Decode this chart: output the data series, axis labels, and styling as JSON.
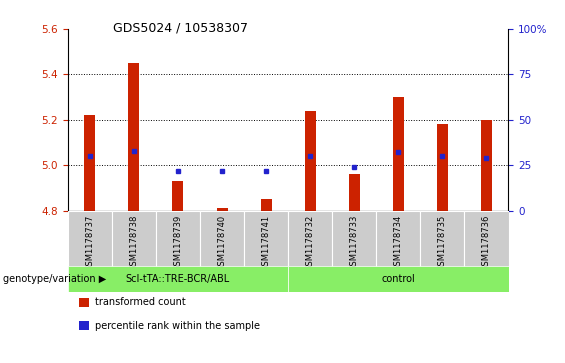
{
  "title": "GDS5024 / 10538307",
  "samples": [
    "GSM1178737",
    "GSM1178738",
    "GSM1178739",
    "GSM1178740",
    "GSM1178741",
    "GSM1178732",
    "GSM1178733",
    "GSM1178734",
    "GSM1178735",
    "GSM1178736"
  ],
  "transformed_count": [
    5.22,
    5.45,
    4.93,
    4.81,
    4.85,
    5.24,
    4.96,
    5.3,
    5.18,
    5.2
  ],
  "percentile_rank": [
    30,
    33,
    22,
    22,
    22,
    30,
    24,
    32,
    30,
    29
  ],
  "group1_label": "ScI-tTA::TRE-BCR/ABL",
  "group2_label": "control",
  "group1_count": 5,
  "group2_count": 5,
  "ylim_left": [
    4.8,
    5.6
  ],
  "ylim_right": [
    0,
    100
  ],
  "yticks_left": [
    4.8,
    5.0,
    5.2,
    5.4,
    5.6
  ],
  "yticks_right": [
    0,
    25,
    50,
    75,
    100
  ],
  "ytick_right_labels": [
    "0",
    "25",
    "50",
    "75",
    "100%"
  ],
  "bar_color": "#cc2200",
  "dot_color": "#2222cc",
  "group_bg": "#88ee66",
  "sample_bg": "#cccccc",
  "legend_red_label": "transformed count",
  "legend_blue_label": "percentile rank within the sample",
  "genotype_label": "genotype/variation",
  "left_tick_color": "#cc2200",
  "right_tick_color": "#2222cc",
  "bar_width": 0.25
}
